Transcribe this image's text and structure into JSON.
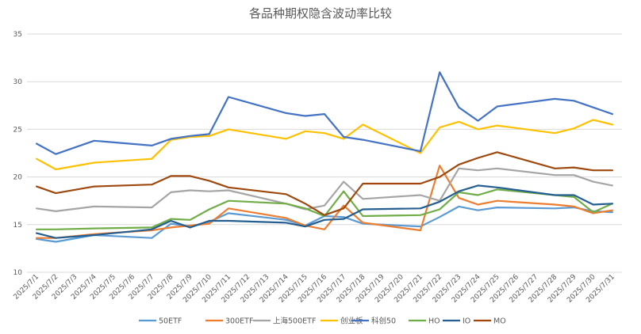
{
  "chart_data": {
    "type": "line",
    "title": "各品种期权隐含波动率比较",
    "xlabel": "",
    "ylabel": "",
    "ylim": [
      10,
      35
    ],
    "yticks": [
      10,
      15,
      20,
      25,
      30,
      35
    ],
    "grid": true,
    "legend": "bottom",
    "x": [
      "2025/7/1",
      "2025/7/2",
      "2025/7/3",
      "2025/7/4",
      "2025/7/5",
      "2025/7/6",
      "2025/7/7",
      "2025/7/8",
      "2025/7/9",
      "2025/7/10",
      "2025/7/11",
      "2025/7/12",
      "2025/7/13",
      "2025/7/14",
      "2025/7/15",
      "2025/7/16",
      "2025/7/17",
      "2025/7/18",
      "2025/7/19",
      "2025/7/20",
      "2025/7/21",
      "2025/7/22",
      "2025/7/23",
      "2025/7/24",
      "2025/7/25",
      "2025/7/26",
      "2025/7/27",
      "2025/7/28",
      "2025/7/29",
      "2025/7/30",
      "2025/7/31"
    ],
    "series": [
      {
        "name": "50ETF",
        "color": "#5b9bd5",
        "points": [
          [
            "2025/7/1",
            13.5
          ],
          [
            "2025/7/2",
            13.2
          ],
          [
            "2025/7/4",
            13.9
          ],
          [
            "2025/7/7",
            13.6
          ],
          [
            "2025/7/8",
            15.1
          ],
          [
            "2025/7/9",
            14.8
          ],
          [
            "2025/7/10",
            15.3
          ],
          [
            "2025/7/11",
            16.2
          ],
          [
            "2025/7/14",
            15.5
          ],
          [
            "2025/7/15",
            14.9
          ],
          [
            "2025/7/16",
            15.9
          ],
          [
            "2025/7/17",
            15.8
          ],
          [
            "2025/7/18",
            15.1
          ],
          [
            "2025/7/21",
            14.8
          ],
          [
            "2025/7/22",
            15.8
          ],
          [
            "2025/7/23",
            16.9
          ],
          [
            "2025/7/24",
            16.5
          ],
          [
            "2025/7/25",
            16.8
          ],
          [
            "2025/7/28",
            16.7
          ],
          [
            "2025/7/29",
            16.8
          ],
          [
            "2025/7/30",
            16.4
          ],
          [
            "2025/7/31",
            16.3
          ]
        ]
      },
      {
        "name": "300ETF",
        "color": "#ed7d31",
        "points": [
          [
            "2025/7/1",
            13.6
          ],
          [
            "2025/7/2",
            13.6
          ],
          [
            "2025/7/4",
            14.0
          ],
          [
            "2025/7/7",
            14.4
          ],
          [
            "2025/7/8",
            14.7
          ],
          [
            "2025/7/9",
            14.9
          ],
          [
            "2025/7/10",
            15.1
          ],
          [
            "2025/7/11",
            16.7
          ],
          [
            "2025/7/14",
            15.7
          ],
          [
            "2025/7/15",
            14.9
          ],
          [
            "2025/7/16",
            14.5
          ],
          [
            "2025/7/17",
            17.0
          ],
          [
            "2025/7/18",
            15.2
          ],
          [
            "2025/7/21",
            14.4
          ],
          [
            "2025/7/22",
            21.2
          ],
          [
            "2025/7/23",
            17.8
          ],
          [
            "2025/7/24",
            17.1
          ],
          [
            "2025/7/25",
            17.5
          ],
          [
            "2025/7/28",
            17.1
          ],
          [
            "2025/7/29",
            16.9
          ],
          [
            "2025/7/30",
            16.2
          ],
          [
            "2025/7/31",
            16.5
          ]
        ]
      },
      {
        "name": "上海500ETF",
        "color": "#a5a5a5",
        "points": [
          [
            "2025/7/1",
            16.7
          ],
          [
            "2025/7/2",
            16.4
          ],
          [
            "2025/7/4",
            16.9
          ],
          [
            "2025/7/7",
            16.8
          ],
          [
            "2025/7/8",
            18.4
          ],
          [
            "2025/7/9",
            18.6
          ],
          [
            "2025/7/10",
            18.5
          ],
          [
            "2025/7/11",
            18.6
          ],
          [
            "2025/7/14",
            17.2
          ],
          [
            "2025/7/15",
            16.6
          ],
          [
            "2025/7/16",
            17.0
          ],
          [
            "2025/7/17",
            19.5
          ],
          [
            "2025/7/18",
            17.7
          ],
          [
            "2025/7/21",
            18.1
          ],
          [
            "2025/7/22",
            17.5
          ],
          [
            "2025/7/23",
            20.9
          ],
          [
            "2025/7/24",
            20.7
          ],
          [
            "2025/7/25",
            20.9
          ],
          [
            "2025/7/28",
            20.2
          ],
          [
            "2025/7/29",
            20.2
          ],
          [
            "2025/7/30",
            19.5
          ],
          [
            "2025/7/31",
            19.1
          ]
        ]
      },
      {
        "name": "创业板",
        "color": "#ffc000",
        "points": [
          [
            "2025/7/1",
            21.9
          ],
          [
            "2025/7/2",
            20.8
          ],
          [
            "2025/7/4",
            21.5
          ],
          [
            "2025/7/7",
            21.9
          ],
          [
            "2025/7/8",
            23.9
          ],
          [
            "2025/7/9",
            24.2
          ],
          [
            "2025/7/10",
            24.3
          ],
          [
            "2025/7/11",
            25.0
          ],
          [
            "2025/7/14",
            24.0
          ],
          [
            "2025/7/15",
            24.8
          ],
          [
            "2025/7/16",
            24.6
          ],
          [
            "2025/7/17",
            24.0
          ],
          [
            "2025/7/18",
            25.5
          ],
          [
            "2025/7/21",
            22.5
          ],
          [
            "2025/7/22",
            25.2
          ],
          [
            "2025/7/23",
            25.8
          ],
          [
            "2025/7/24",
            25.0
          ],
          [
            "2025/7/25",
            25.4
          ],
          [
            "2025/7/28",
            24.6
          ],
          [
            "2025/7/29",
            25.1
          ],
          [
            "2025/7/30",
            26.0
          ],
          [
            "2025/7/31",
            25.5
          ]
        ]
      },
      {
        "name": "科创50",
        "color": "#4472c4",
        "points": [
          [
            "2025/7/1",
            23.5
          ],
          [
            "2025/7/2",
            22.4
          ],
          [
            "2025/7/4",
            23.8
          ],
          [
            "2025/7/7",
            23.3
          ],
          [
            "2025/7/8",
            24.0
          ],
          [
            "2025/7/9",
            24.3
          ],
          [
            "2025/7/10",
            24.5
          ],
          [
            "2025/7/11",
            28.4
          ],
          [
            "2025/7/14",
            26.7
          ],
          [
            "2025/7/15",
            26.4
          ],
          [
            "2025/7/16",
            26.6
          ],
          [
            "2025/7/17",
            24.2
          ],
          [
            "2025/7/18",
            23.9
          ],
          [
            "2025/7/21",
            22.7
          ],
          [
            "2025/7/22",
            31.0
          ],
          [
            "2025/7/23",
            27.3
          ],
          [
            "2025/7/24",
            25.9
          ],
          [
            "2025/7/25",
            27.4
          ],
          [
            "2025/7/28",
            28.2
          ],
          [
            "2025/7/29",
            28.0
          ],
          [
            "2025/7/30",
            27.3
          ],
          [
            "2025/7/31",
            26.6
          ]
        ]
      },
      {
        "name": "HO",
        "color": "#70ad47",
        "points": [
          [
            "2025/7/1",
            14.5
          ],
          [
            "2025/7/2",
            14.5
          ],
          [
            "2025/7/4",
            14.6
          ],
          [
            "2025/7/7",
            14.7
          ],
          [
            "2025/7/8",
            15.6
          ],
          [
            "2025/7/9",
            15.5
          ],
          [
            "2025/7/10",
            16.6
          ],
          [
            "2025/7/11",
            17.5
          ],
          [
            "2025/7/14",
            17.2
          ],
          [
            "2025/7/15",
            16.7
          ],
          [
            "2025/7/16",
            15.9
          ],
          [
            "2025/7/17",
            18.5
          ],
          [
            "2025/7/18",
            15.9
          ],
          [
            "2025/7/21",
            16.0
          ],
          [
            "2025/7/22",
            16.6
          ],
          [
            "2025/7/23",
            18.4
          ],
          [
            "2025/7/24",
            18.1
          ],
          [
            "2025/7/25",
            18.7
          ],
          [
            "2025/7/28",
            18.1
          ],
          [
            "2025/7/29",
            17.9
          ],
          [
            "2025/7/30",
            16.3
          ],
          [
            "2025/7/31",
            17.2
          ]
        ]
      },
      {
        "name": "IO",
        "color": "#255e91",
        "points": [
          [
            "2025/7/1",
            14.1
          ],
          [
            "2025/7/2",
            13.6
          ],
          [
            "2025/7/4",
            13.9
          ],
          [
            "2025/7/7",
            14.5
          ],
          [
            "2025/7/8",
            15.4
          ],
          [
            "2025/7/9",
            14.7
          ],
          [
            "2025/7/10",
            15.4
          ],
          [
            "2025/7/11",
            15.4
          ],
          [
            "2025/7/14",
            15.2
          ],
          [
            "2025/7/15",
            14.8
          ],
          [
            "2025/7/16",
            15.5
          ],
          [
            "2025/7/17",
            15.6
          ],
          [
            "2025/7/18",
            16.6
          ],
          [
            "2025/7/21",
            16.7
          ],
          [
            "2025/7/22",
            17.4
          ],
          [
            "2025/7/23",
            18.5
          ],
          [
            "2025/7/24",
            19.1
          ],
          [
            "2025/7/25",
            18.9
          ],
          [
            "2025/7/28",
            18.1
          ],
          [
            "2025/7/29",
            18.1
          ],
          [
            "2025/7/30",
            17.1
          ],
          [
            "2025/7/31",
            17.2
          ]
        ]
      },
      {
        "name": "MO",
        "color": "#9e480e",
        "points": [
          [
            "2025/7/1",
            19.0
          ],
          [
            "2025/7/2",
            18.3
          ],
          [
            "2025/7/4",
            19.0
          ],
          [
            "2025/7/7",
            19.2
          ],
          [
            "2025/7/8",
            20.1
          ],
          [
            "2025/7/9",
            20.1
          ],
          [
            "2025/7/10",
            19.6
          ],
          [
            "2025/7/11",
            18.9
          ],
          [
            "2025/7/14",
            18.2
          ],
          [
            "2025/7/15",
            17.2
          ],
          [
            "2025/7/16",
            16.0
          ],
          [
            "2025/7/17",
            16.7
          ],
          [
            "2025/7/18",
            19.3
          ],
          [
            "2025/7/21",
            19.3
          ],
          [
            "2025/7/22",
            20.0
          ],
          [
            "2025/7/23",
            21.3
          ],
          [
            "2025/7/24",
            22.0
          ],
          [
            "2025/7/25",
            22.6
          ],
          [
            "2025/7/28",
            20.9
          ],
          [
            "2025/7/29",
            21.0
          ],
          [
            "2025/7/30",
            20.7
          ],
          [
            "2025/7/31",
            20.7
          ]
        ]
      }
    ]
  }
}
